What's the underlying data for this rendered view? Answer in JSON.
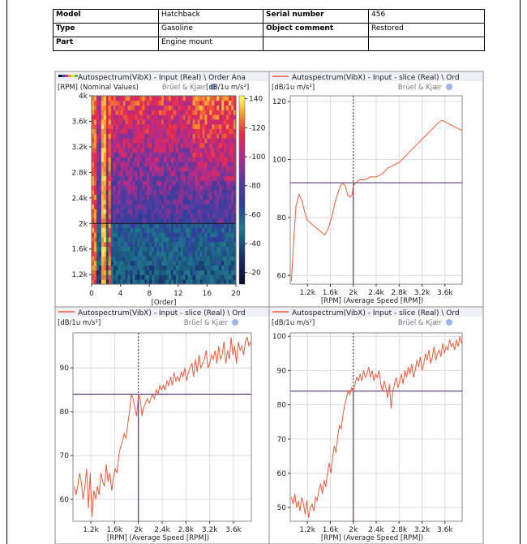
{
  "meta_table": [
    [
      {
        "t": "Model",
        "b": true
      },
      {
        "t": "Hatchback",
        "b": false
      },
      {
        "t": "Serial number",
        "b": true
      },
      {
        "t": "456",
        "b": false
      }
    ],
    [
      {
        "t": "Type",
        "b": true
      },
      {
        "t": "Gasoline",
        "b": false
      },
      {
        "t": "Object comment",
        "b": true
      },
      {
        "t": "Restored",
        "b": false
      }
    ],
    [
      {
        "t": "Part",
        "b": true
      },
      {
        "t": "Engine mount",
        "b": false
      },
      {
        "t": "",
        "b": false
      },
      {
        "t": "",
        "b": false
      }
    ]
  ],
  "colors": {
    "trace": "#f05a3a",
    "cursor": "#5a3a7a",
    "grid": "#dcdcdc",
    "bar": "#eef0f6"
  },
  "brand": "Brüel & Kjær",
  "chart_data": [
    {
      "type": "heatmap",
      "title": "Autospectrum(VibX) - Input (Real) \\ Order Ana",
      "ylabel": "[RPM] (Nominal Values)",
      "xlabel": "[Order]",
      "zlabel": "[dB/1u m/s²]",
      "xlim": [
        0,
        20
      ],
      "ylim": [
        1050,
        4000
      ],
      "zlim": [
        12,
        142
      ],
      "xticks": [
        0,
        4,
        8,
        12,
        16,
        20
      ],
      "yticks": [
        {
          "v": 1200,
          "l": "1.2k"
        },
        {
          "v": 1600,
          "l": "1.6k"
        },
        {
          "v": 2000,
          "l": "2k"
        },
        {
          "v": 2400,
          "l": "2.4k"
        },
        {
          "v": 2800,
          "l": "2.8k"
        },
        {
          "v": 3200,
          "l": "3.2k"
        },
        {
          "v": 3600,
          "l": "3.6k"
        },
        {
          "v": 4000,
          "l": "4k"
        }
      ],
      "colorbar_ticks": [
        20,
        40,
        60,
        80,
        100,
        120,
        140
      ],
      "cursor_y": 2000
    },
    {
      "type": "line",
      "title": "Autospectrum(VibX) - Input - slice (Real) \\ Ord",
      "ylabel": "[dB/1u m/s²]",
      "xlabel": "[RPM] (Average Speed [RPM])",
      "xlim": [
        900,
        3900
      ],
      "ylim": [
        57,
        122
      ],
      "xticks": [
        {
          "v": 1200,
          "l": "1.2k"
        },
        {
          "v": 1600,
          "l": "1.6k"
        },
        {
          "v": 2000,
          "l": "2k"
        },
        {
          "v": 2400,
          "l": "2.4k"
        },
        {
          "v": 2800,
          "l": "2.8k"
        },
        {
          "v": 3200,
          "l": "3.2k"
        },
        {
          "v": 3600,
          "l": "3.6k"
        }
      ],
      "yticks": [
        60,
        80,
        100,
        120
      ],
      "cursor_x": 2000,
      "cursor_y": 92,
      "x": [
        920,
        960,
        1000,
        1050,
        1100,
        1150,
        1200,
        1260,
        1320,
        1380,
        1440,
        1500,
        1560,
        1620,
        1680,
        1740,
        1800,
        1860,
        1900,
        1940,
        1980,
        2000,
        2050,
        2100,
        2200,
        2300,
        2400,
        2500,
        2600,
        2700,
        2800,
        2900,
        3000,
        3100,
        3200,
        3300,
        3400,
        3500,
        3550,
        3600,
        3650,
        3700,
        3800,
        3900
      ],
      "y": [
        58,
        72,
        84,
        88,
        86,
        82,
        79,
        78,
        77,
        76,
        75,
        74,
        76,
        80,
        85,
        89,
        92,
        91,
        88,
        87,
        88,
        91,
        92,
        93,
        93,
        94,
        94,
        95,
        97,
        98,
        99,
        101,
        103,
        105,
        107,
        109,
        111,
        113,
        113.5,
        113,
        112.5,
        112,
        111,
        110
      ]
    },
    {
      "type": "line",
      "title": "Autospectrum(VibX) - Input - slice (Real) \\ Ord",
      "ylabel": "[dB/1u m/s²]",
      "xlabel": "[RPM] (Average Speed [RPM])",
      "xlim": [
        900,
        3900
      ],
      "ylim": [
        55,
        98
      ],
      "xticks": [
        {
          "v": 1200,
          "l": "1.2k"
        },
        {
          "v": 1600,
          "l": "1.6k"
        },
        {
          "v": 2000,
          "l": "2k"
        },
        {
          "v": 2400,
          "l": "2.4k"
        },
        {
          "v": 2800,
          "l": "2.8k"
        },
        {
          "v": 3200,
          "l": "3.2k"
        },
        {
          "v": 3600,
          "l": "3.6k"
        }
      ],
      "yticks": [
        60,
        70,
        80,
        90
      ],
      "cursor_x": 2000,
      "cursor_y": 84,
      "x": [
        920,
        950,
        980,
        1010,
        1040,
        1070,
        1100,
        1130,
        1160,
        1190,
        1220,
        1250,
        1280,
        1310,
        1340,
        1370,
        1400,
        1430,
        1460,
        1490,
        1520,
        1550,
        1580,
        1610,
        1640,
        1670,
        1700,
        1730,
        1760,
        1790,
        1820,
        1850,
        1880,
        1910,
        1940,
        1970,
        2000,
        2030,
        2060,
        2090,
        2120,
        2150,
        2180,
        2210,
        2240,
        2270,
        2300,
        2330,
        2360,
        2390,
        2420,
        2450,
        2480,
        2510,
        2540,
        2570,
        2600,
        2630,
        2660,
        2690,
        2720,
        2750,
        2780,
        2810,
        2840,
        2870,
        2900,
        2930,
        2960,
        2990,
        3020,
        3050,
        3080,
        3110,
        3140,
        3170,
        3200,
        3230,
        3260,
        3290,
        3320,
        3350,
        3380,
        3410,
        3440,
        3470,
        3500,
        3530,
        3560,
        3590,
        3620,
        3650,
        3680,
        3710,
        3740,
        3770,
        3800,
        3830,
        3860,
        3890
      ],
      "y": [
        63,
        61,
        63,
        66,
        64,
        60,
        63,
        67,
        58,
        66,
        56,
        62,
        60,
        63,
        61,
        66,
        64,
        63,
        68,
        64,
        66,
        62,
        65,
        67,
        66,
        70,
        72,
        73,
        75,
        74,
        77,
        80,
        84,
        83,
        81,
        79,
        84,
        83,
        79,
        81,
        82,
        83,
        82,
        83,
        84,
        83,
        85,
        84,
        86,
        85,
        86,
        85,
        87,
        86,
        88,
        86,
        89,
        87,
        88,
        87,
        89,
        88,
        90,
        87,
        89,
        90,
        91,
        88,
        92,
        89,
        93,
        90,
        91,
        92,
        94,
        90,
        91,
        93,
        92,
        94,
        91,
        95,
        92,
        93,
        96,
        91,
        94,
        92,
        97,
        93,
        95,
        91,
        96,
        94,
        95,
        93,
        96,
        97,
        95,
        96
      ]
    },
    {
      "type": "line",
      "title": "Autospectrum(VibX) - Input - slice (Real) \\ Ord",
      "ylabel": "[dB/1u m/s²]",
      "xlabel": "[RPM] (Average Speed [RPM])",
      "xlim": [
        900,
        3900
      ],
      "ylim": [
        46,
        101
      ],
      "xticks": [
        {
          "v": 1200,
          "l": "1.2k"
        },
        {
          "v": 1600,
          "l": "1.6k"
        },
        {
          "v": 2000,
          "l": "2k"
        },
        {
          "v": 2400,
          "l": "2.4k"
        },
        {
          "v": 2800,
          "l": "2.8k"
        },
        {
          "v": 3200,
          "l": "3.2k"
        },
        {
          "v": 3600,
          "l": "3.6k"
        }
      ],
      "yticks": [
        50,
        60,
        70,
        80,
        90,
        100
      ],
      "cursor_x": 2000,
      "cursor_y": 84,
      "x": [
        920,
        950,
        980,
        1010,
        1040,
        1070,
        1100,
        1130,
        1160,
        1190,
        1220,
        1250,
        1280,
        1310,
        1340,
        1370,
        1400,
        1430,
        1460,
        1490,
        1520,
        1550,
        1580,
        1610,
        1640,
        1670,
        1700,
        1730,
        1760,
        1790,
        1820,
        1850,
        1880,
        1910,
        1940,
        1970,
        2000,
        2030,
        2060,
        2090,
        2120,
        2150,
        2180,
        2210,
        2240,
        2270,
        2300,
        2330,
        2360,
        2390,
        2420,
        2450,
        2480,
        2510,
        2540,
        2570,
        2600,
        2630,
        2660,
        2690,
        2720,
        2750,
        2780,
        2810,
        2840,
        2870,
        2900,
        2930,
        2960,
        2990,
        3020,
        3050,
        3080,
        3110,
        3140,
        3170,
        3200,
        3230,
        3260,
        3290,
        3320,
        3350,
        3380,
        3410,
        3440,
        3470,
        3500,
        3530,
        3560,
        3590,
        3620,
        3650,
        3680,
        3710,
        3740,
        3770,
        3800,
        3830,
        3860,
        3890
      ],
      "y": [
        53,
        51,
        54,
        50,
        52,
        49,
        53,
        51,
        48,
        52,
        47,
        50,
        51,
        49,
        53,
        52,
        55,
        57,
        54,
        58,
        56,
        60,
        63,
        60,
        65,
        68,
        66,
        71,
        74,
        73,
        77,
        80,
        82,
        84,
        83,
        85,
        84,
        86,
        88,
        87,
        89,
        87,
        90,
        88,
        89,
        91,
        88,
        90,
        87,
        89,
        88,
        90,
        86,
        84,
        87,
        85,
        82,
        86,
        79,
        84,
        86,
        88,
        85,
        87,
        89,
        86,
        90,
        88,
        91,
        89,
        92,
        88,
        90,
        93,
        91,
        94,
        90,
        92,
        95,
        93,
        96,
        92,
        94,
        97,
        93,
        95,
        96,
        94,
        98,
        95,
        97,
        96,
        99,
        97,
        98,
        96,
        99,
        97,
        100,
        98
      ]
    }
  ]
}
